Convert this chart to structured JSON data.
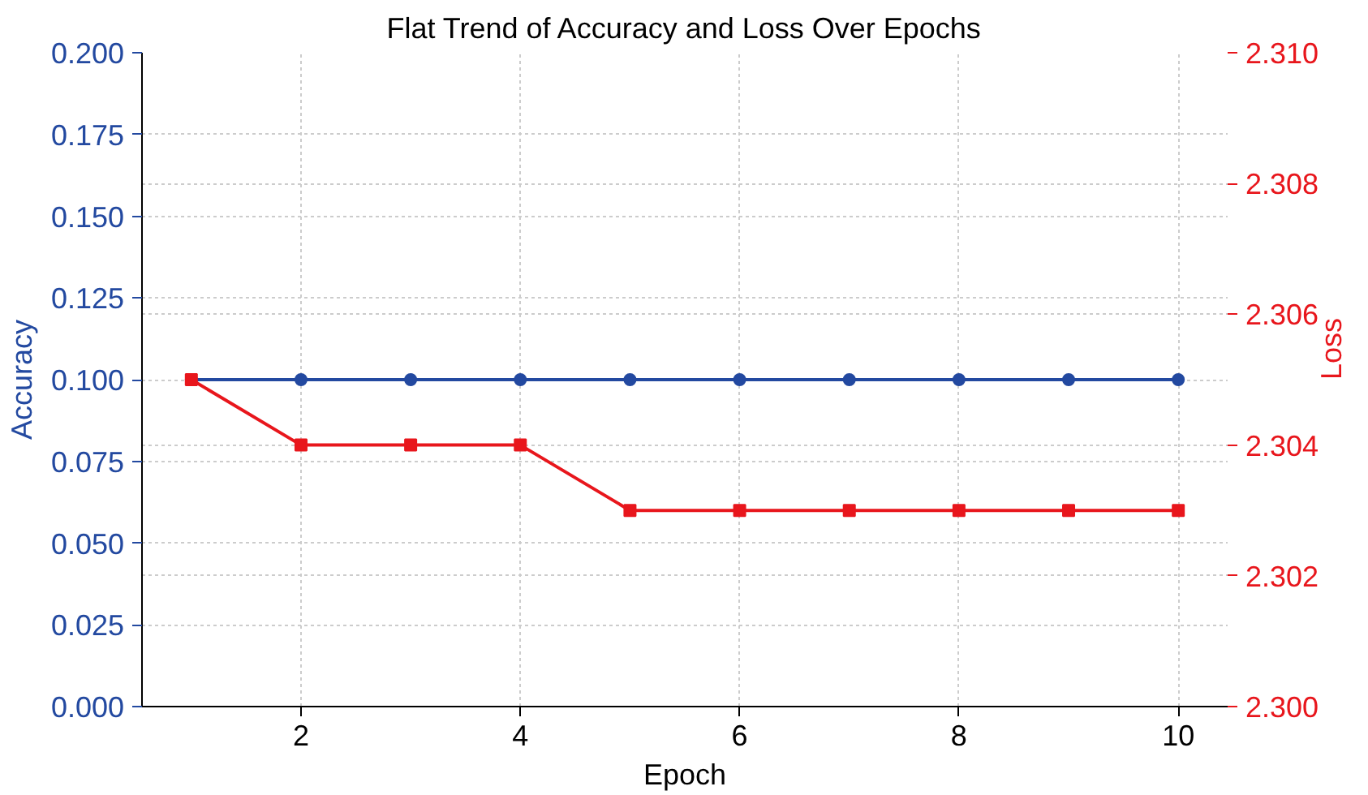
{
  "chart_data": {
    "type": "line",
    "title": "Flat Trend of Accuracy and Loss Over Epochs",
    "xlabel": "Epoch",
    "ylabel": "Accuracy",
    "y2label": "Loss",
    "x": [
      1,
      2,
      3,
      4,
      5,
      6,
      7,
      8,
      9,
      10
    ],
    "series": [
      {
        "color": "#2349a0",
        "values": [
          0.1,
          0.1,
          0.1,
          0.1,
          0.1,
          0.1,
          0.1,
          0.1,
          0.1,
          0.1
        ],
        "marker": "circle"
      },
      {
        "color": "#e8161c",
        "axis": "y2",
        "values": [
          2.305,
          2.304,
          2.304,
          2.304,
          2.303,
          2.303,
          2.303,
          2.303,
          2.303,
          2.303
        ],
        "marker": "square"
      }
    ],
    "xlim": [
      0.55,
      10.45
    ],
    "xticks": [
      2,
      4,
      6,
      8,
      10
    ],
    "ylim": [
      0,
      0.2
    ],
    "yticks": [
      {
        "value": 0,
        "label": "0.000"
      },
      {
        "value": 0.025,
        "label": "0.025"
      },
      {
        "value": 0.05,
        "label": "0.050"
      },
      {
        "value": 0.075,
        "label": "0.075"
      },
      {
        "value": 0.1,
        "label": "0.100"
      },
      {
        "value": 0.125,
        "label": "0.125"
      },
      {
        "value": 0.15,
        "label": "0.150"
      },
      {
        "value": 0.175,
        "label": "0.175"
      },
      {
        "value": 0.2,
        "label": "0.200"
      }
    ],
    "y2lim": [
      2.3,
      2.31
    ],
    "y2ticks": [
      {
        "value": 2.3,
        "label": "2.300"
      },
      {
        "value": 2.302,
        "label": "2.302"
      },
      {
        "value": 2.304,
        "label": "2.304"
      },
      {
        "value": 2.306,
        "label": "2.306"
      },
      {
        "value": 2.308,
        "label": "2.308"
      },
      {
        "value": 2.31,
        "label": "2.310"
      }
    ],
    "grid": true,
    "line_style": "solid"
  }
}
